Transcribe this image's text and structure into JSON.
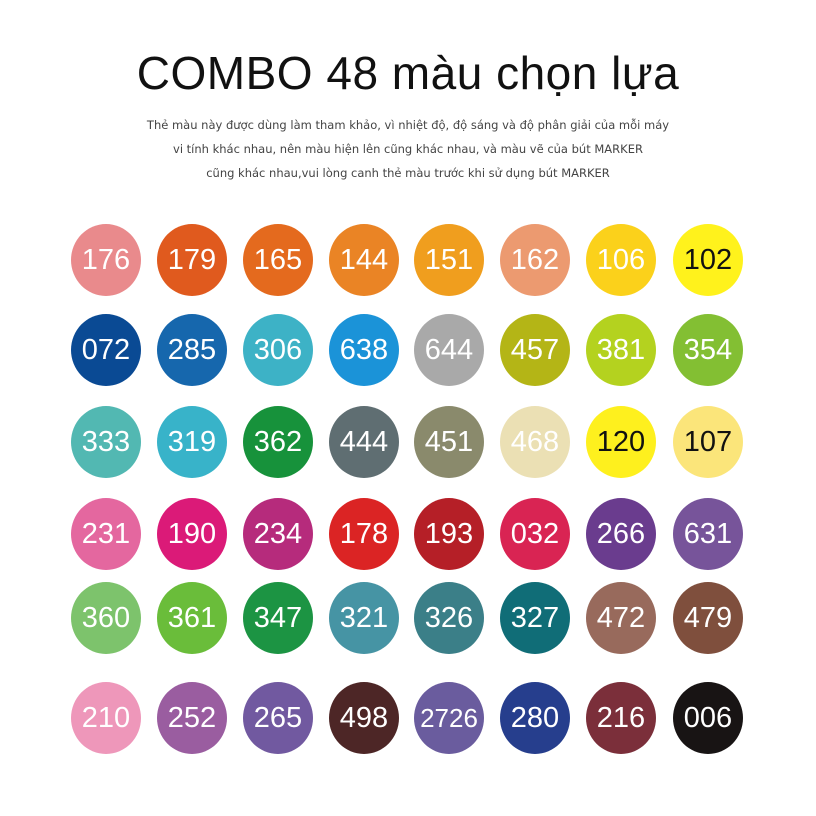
{
  "title": "COMBO 48 màu chọn lựa",
  "subtitle": [
    "Thẻ màu này được dùng làm tham khảo, vì nhiệt độ, độ sáng và độ phân giải của mỗi máy",
    "vi tính khác nhau, nên màu hiện lên cũng khác nhau, và màu vẽ của bút MARKER",
    "cũng khác nhau,vui lòng canh thẻ màu trước khi sử dụng bút MARKER"
  ],
  "swatches": [
    [
      {
        "code": "176",
        "color": "#e98a8c"
      },
      {
        "code": "179",
        "color": "#e05a1e"
      },
      {
        "code": "165",
        "color": "#e46a1e"
      },
      {
        "code": "144",
        "color": "#ea8425"
      },
      {
        "code": "151",
        "color": "#f09e1e"
      },
      {
        "code": "162",
        "color": "#ec9a70"
      },
      {
        "code": "106",
        "color": "#fbd11b"
      },
      {
        "code": "102",
        "color": "#fff21c",
        "text": "#111"
      }
    ],
    [
      {
        "code": "072",
        "color": "#0a4a94"
      },
      {
        "code": "285",
        "color": "#1667ad"
      },
      {
        "code": "306",
        "color": "#3db2c6"
      },
      {
        "code": "638",
        "color": "#1b93d8"
      },
      {
        "code": "644",
        "color": "#a9a9a9"
      },
      {
        "code": "457",
        "color": "#b4b516"
      },
      {
        "code": "381",
        "color": "#b4d21f"
      },
      {
        "code": "354",
        "color": "#83bf33"
      }
    ],
    [
      {
        "code": "333",
        "color": "#52b8b2"
      },
      {
        "code": "319",
        "color": "#38b3c9"
      },
      {
        "code": "362",
        "color": "#17923b"
      },
      {
        "code": "444",
        "color": "#5f6e72"
      },
      {
        "code": "451",
        "color": "#8a8a6c"
      },
      {
        "code": "468",
        "color": "#ebe0b4"
      },
      {
        "code": "120",
        "color": "#fef01e",
        "text": "#111"
      },
      {
        "code": "107",
        "color": "#fbe57a",
        "text": "#111"
      }
    ],
    [
      {
        "code": "231",
        "color": "#e4679f"
      },
      {
        "code": "190",
        "color": "#db1a78"
      },
      {
        "code": "234",
        "color": "#b62b7c"
      },
      {
        "code": "178",
        "color": "#db2424"
      },
      {
        "code": "193",
        "color": "#b51f27"
      },
      {
        "code": "032",
        "color": "#d92453"
      },
      {
        "code": "266",
        "color": "#6a3c8e"
      },
      {
        "code": "631",
        "color": "#77549a"
      }
    ],
    [
      {
        "code": "360",
        "color": "#7dc36c"
      },
      {
        "code": "361",
        "color": "#6abd3a"
      },
      {
        "code": "347",
        "color": "#1c9443"
      },
      {
        "code": "321",
        "color": "#4694a4"
      },
      {
        "code": "326",
        "color": "#3b7f88"
      },
      {
        "code": "327",
        "color": "#106d77"
      },
      {
        "code": "472",
        "color": "#986a5c"
      },
      {
        "code": "479",
        "color": "#7f4f3d"
      }
    ],
    [
      {
        "code": "210",
        "color": "#ee97ba"
      },
      {
        "code": "252",
        "color": "#9a5da0"
      },
      {
        "code": "265",
        "color": "#7159a0"
      },
      {
        "code": "498",
        "color": "#4d2626"
      },
      {
        "code": "2726",
        "color": "#6a5c9e"
      },
      {
        "code": "280",
        "color": "#263e8d"
      },
      {
        "code": "216",
        "color": "#7b2f3a"
      },
      {
        "code": "006",
        "color": "#181414"
      }
    ]
  ]
}
